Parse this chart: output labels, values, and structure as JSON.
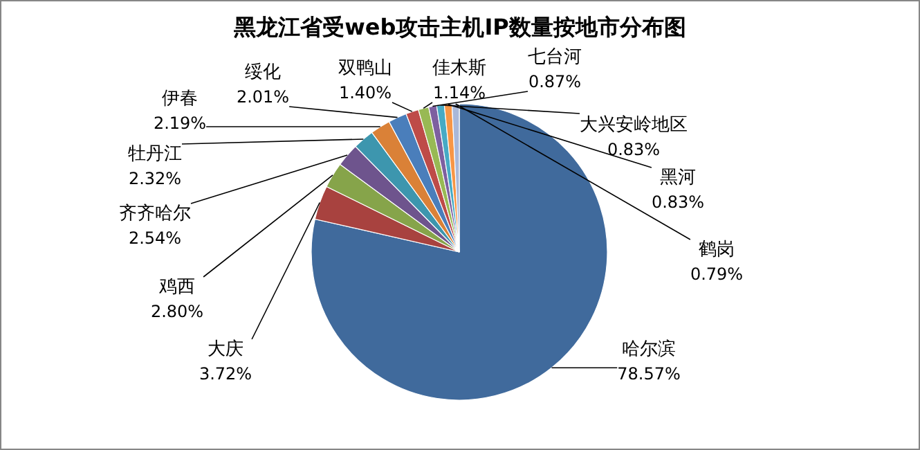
{
  "chart_data": {
    "type": "pie",
    "title": "黑龙江省受web攻击主机IP数量按地市分布图",
    "categories": [
      "哈尔滨",
      "大庆",
      "鸡西",
      "齐齐哈尔",
      "牡丹江",
      "伊春",
      "绥化",
      "双鸭山",
      "佳木斯",
      "七台河",
      "大兴安岭地区",
      "黑河",
      "鹤岗"
    ],
    "values": [
      78.57,
      3.72,
      2.8,
      2.54,
      2.32,
      2.19,
      2.01,
      1.4,
      1.14,
      0.87,
      0.83,
      0.83,
      0.79
    ],
    "colors": [
      "#406a9c",
      "#a8423f",
      "#86a44a",
      "#6e548d",
      "#3d96ae",
      "#da8137",
      "#4a7ebb",
      "#be4b48",
      "#98b954",
      "#7d60a0",
      "#46aac5",
      "#f79646",
      "#a9b8d9"
    ],
    "value_labels": [
      "78.57%",
      "3.72%",
      "2.80%",
      "2.54%",
      "2.32%",
      "2.19%",
      "2.01%",
      "1.40%",
      "1.14%",
      "0.87%",
      "0.83%",
      "0.83%",
      "0.79%"
    ]
  }
}
